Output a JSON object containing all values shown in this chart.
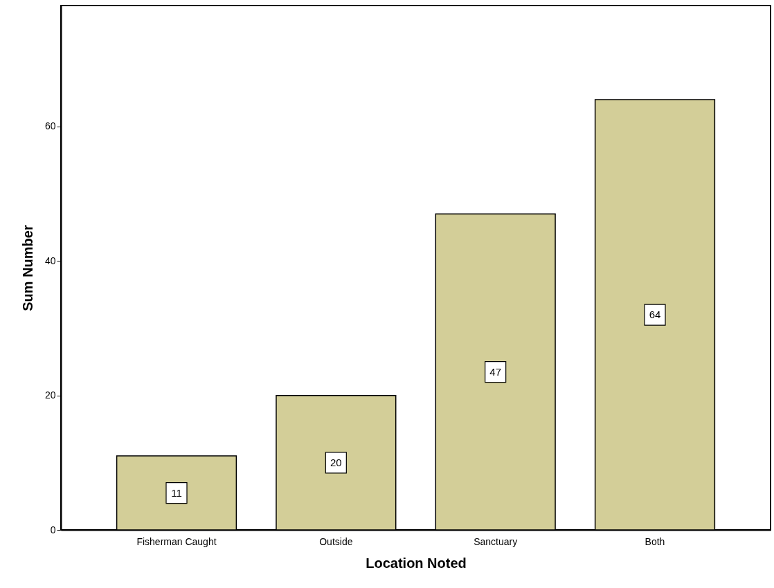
{
  "chart_data": {
    "type": "bar",
    "xlabel": "Location Noted",
    "ylabel": "Sum Number",
    "categories": [
      "Fisherman Caught",
      "Outside",
      "Sanctuary",
      "Both"
    ],
    "values": [
      11,
      20,
      47,
      64
    ],
    "color": "#d3ce98",
    "ylim": [
      0,
      78
    ],
    "yticks": [
      0,
      20,
      40,
      60
    ],
    "grid": false,
    "data_labels": true
  }
}
